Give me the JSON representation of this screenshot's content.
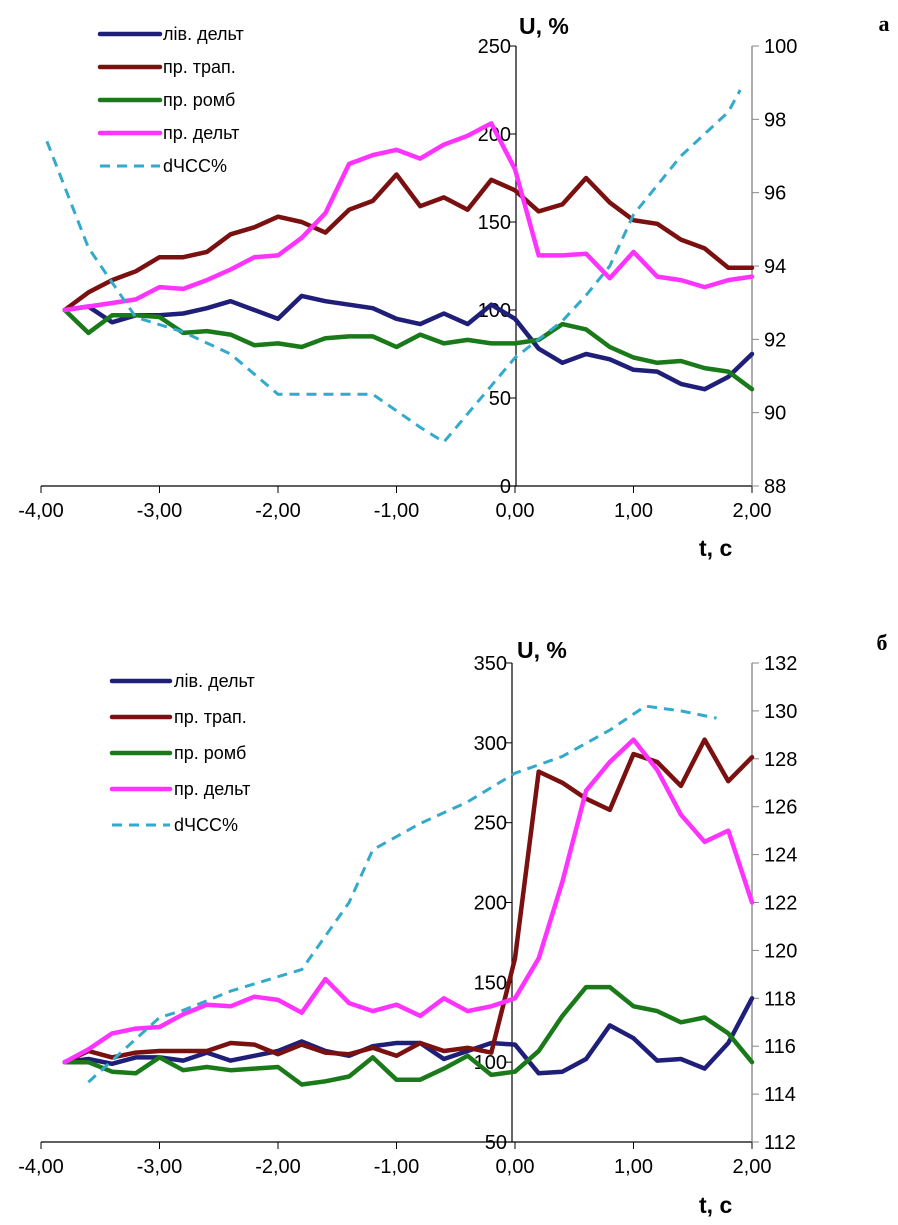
{
  "chart_data": [
    {
      "type": "line",
      "panel_label": "а",
      "title": "",
      "ylabel": "U, %",
      "xlabel": "t, с",
      "x_ticks": [
        "-4,00",
        "-3,00",
        "-2,00",
        "-1,00",
        "0,00",
        "1,00",
        "2,00"
      ],
      "y_ticks": [
        "0",
        "50",
        "100",
        "150",
        "200",
        "250"
      ],
      "y2_ticks": [
        "88",
        "90",
        "92",
        "94",
        "96",
        "98",
        "100"
      ],
      "xlim": [
        -4,
        2
      ],
      "ylim": [
        0,
        250
      ],
      "y2lim": [
        88,
        100
      ],
      "grid": false,
      "legend_position": "top-left",
      "x": [
        -3.8,
        -3.6,
        -3.4,
        -3.2,
        -3.0,
        -2.8,
        -2.6,
        -2.4,
        -2.2,
        -2.0,
        -1.8,
        -1.6,
        -1.4,
        -1.2,
        -1.0,
        -0.8,
        -0.6,
        -0.4,
        -0.2,
        0.0,
        0.2,
        0.4,
        0.6,
        0.8,
        1.0,
        1.2,
        1.4,
        1.6,
        1.8,
        2.0
      ],
      "series": [
        {
          "name": "лів. дельт",
          "color": "#1f1f7a",
          "dashed": false,
          "axis": "left",
          "values": [
            100,
            102,
            93,
            97,
            97,
            98,
            101,
            105,
            100,
            95,
            108,
            105,
            103,
            101,
            95,
            92,
            98,
            92,
            103,
            95,
            78,
            70,
            75,
            72,
            66,
            65,
            58,
            55,
            62,
            75
          ]
        },
        {
          "name": "пр. трап.",
          "color": "#7a1010",
          "dashed": false,
          "axis": "left",
          "values": [
            100,
            110,
            117,
            122,
            130,
            130,
            133,
            143,
            147,
            153,
            150,
            144,
            157,
            162,
            177,
            159,
            164,
            157,
            174,
            168,
            156,
            160,
            175,
            161,
            151,
            149,
            140,
            135,
            124,
            124
          ]
        },
        {
          "name": "пр. ромб",
          "color": "#1a7a1a",
          "dashed": false,
          "axis": "left",
          "values": [
            100,
            87,
            97,
            97,
            96,
            87,
            88,
            86,
            80,
            81,
            79,
            84,
            85,
            85,
            79,
            86,
            81,
            83,
            81,
            81,
            83,
            92,
            89,
            79,
            73,
            70,
            71,
            67,
            65,
            55
          ]
        },
        {
          "name": "пр. дельт",
          "color": "#ff33ff",
          "dashed": false,
          "axis": "left",
          "values": [
            100,
            102,
            104,
            106,
            113,
            112,
            117,
            123,
            130,
            131,
            141,
            155,
            183,
            188,
            191,
            186,
            194,
            199,
            206,
            180,
            131,
            131,
            132,
            118,
            133,
            119,
            117,
            113,
            117,
            119
          ]
        },
        {
          "name": "dЧСС%",
          "color": "#33aacc",
          "dashed": true,
          "axis": "right",
          "x": [
            -3.95,
            -3.6,
            -3.2,
            -2.8,
            -2.4,
            -2.0,
            -1.6,
            -1.2,
            -0.8,
            -0.6,
            0.0,
            0.4,
            0.6,
            0.8,
            1.0,
            1.4,
            1.8,
            1.9
          ],
          "values": [
            97.4,
            94.5,
            92.6,
            92.2,
            91.6,
            90.5,
            90.5,
            90.5,
            89.6,
            89.2,
            91.5,
            92.5,
            93.2,
            94.0,
            95.4,
            97.0,
            98.2,
            98.8
          ]
        }
      ]
    },
    {
      "type": "line",
      "panel_label": "б",
      "title": "",
      "ylabel": "U, %",
      "xlabel": "t, с",
      "x_ticks": [
        "-4,00",
        "-3,00",
        "-2,00",
        "-1,00",
        "0,00",
        "1,00",
        "2,00"
      ],
      "y_ticks": [
        "50",
        "100",
        "150",
        "200",
        "250",
        "300",
        "350"
      ],
      "y2_ticks": [
        "112",
        "114",
        "116",
        "118",
        "120",
        "122",
        "124",
        "126",
        "128",
        "130",
        "132"
      ],
      "xlim": [
        -4,
        2
      ],
      "ylim": [
        50,
        350
      ],
      "y2lim": [
        112,
        132
      ],
      "grid": false,
      "legend_position": "top-left",
      "x": [
        -3.8,
        -3.6,
        -3.4,
        -3.2,
        -3.0,
        -2.8,
        -2.6,
        -2.4,
        -2.2,
        -2.0,
        -1.8,
        -1.6,
        -1.4,
        -1.2,
        -1.0,
        -0.8,
        -0.6,
        -0.4,
        -0.2,
        0.0,
        0.2,
        0.4,
        0.6,
        0.8,
        1.0,
        1.2,
        1.4,
        1.6,
        1.8,
        2.0
      ],
      "series": [
        {
          "name": "лів. дельт",
          "color": "#1f1f7a",
          "dashed": false,
          "axis": "left",
          "values": [
            100,
            102,
            99,
            103,
            103,
            101,
            106,
            101,
            104,
            107,
            113,
            107,
            104,
            110,
            112,
            112,
            102,
            107,
            112,
            111,
            93,
            94,
            102,
            123,
            115,
            101,
            102,
            96,
            112,
            140
          ]
        },
        {
          "name": "пр. трап.",
          "color": "#7a1010",
          "dashed": false,
          "axis": "left",
          "values": [
            100,
            107,
            103,
            106,
            107,
            107,
            107,
            112,
            111,
            105,
            111,
            106,
            105,
            109,
            104,
            112,
            107,
            109,
            106,
            165,
            282,
            275,
            265,
            258,
            293,
            288,
            273,
            302,
            276,
            291
          ]
        },
        {
          "name": "пр. ромб",
          "color": "#1a7a1a",
          "dashed": false,
          "axis": "left",
          "values": [
            100,
            100,
            94,
            93,
            103,
            95,
            97,
            95,
            96,
            97,
            86,
            88,
            91,
            103,
            89,
            89,
            96,
            104,
            92,
            94,
            107,
            129,
            147,
            147,
            135,
            132,
            125,
            128,
            118,
            100
          ]
        },
        {
          "name": "пр. дельт",
          "color": "#ff33ff",
          "dashed": false,
          "axis": "left",
          "values": [
            100,
            108,
            118,
            121,
            122,
            130,
            136,
            135,
            141,
            139,
            131,
            152,
            137,
            132,
            136,
            129,
            140,
            132,
            135,
            140,
            165,
            213,
            270,
            288,
            302,
            283,
            255,
            238,
            245,
            200
          ]
        },
        {
          "name": "dЧСС%",
          "color": "#33aacc",
          "dashed": true,
          "axis": "right",
          "x": [
            -3.6,
            -3.2,
            -3.0,
            -2.8,
            -2.4,
            -2.0,
            -1.8,
            -1.4,
            -1.2,
            -0.8,
            -0.4,
            0.0,
            0.4,
            0.8,
            1.1,
            1.4,
            1.7
          ],
          "values": [
            114.5,
            116.3,
            117.2,
            117.5,
            118.3,
            118.9,
            119.2,
            122.0,
            124.2,
            125.3,
            126.2,
            127.4,
            128.1,
            129.2,
            130.2,
            130.0,
            129.7
          ]
        }
      ]
    }
  ]
}
